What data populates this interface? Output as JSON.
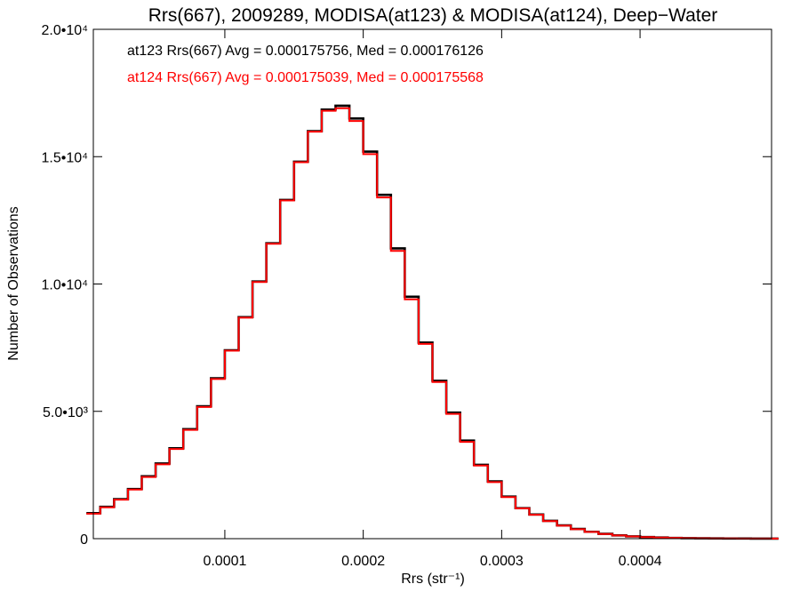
{
  "chart_data": {
    "type": "area",
    "title": "Rrs(667), 2009289, MODISA(at123) & MODISA(at124), Deep−Water",
    "xlabel": "Rrs (str⁻¹)",
    "ylabel": "Number of Observations",
    "xlim": [
      5e-06,
      0.000495
    ],
    "ylim": [
      0,
      20000
    ],
    "x_ticks": [
      {
        "value": 0.0001,
        "label": "0.0001"
      },
      {
        "value": 0.0002,
        "label": "0.0002"
      },
      {
        "value": 0.0003,
        "label": "0.0003"
      },
      {
        "value": 0.0004,
        "label": "0.0004"
      }
    ],
    "y_ticks": [
      {
        "value": 0,
        "label": "0"
      },
      {
        "value": 5000,
        "label": "5.0•10³"
      },
      {
        "value": 10000,
        "label": "1.0•10⁴"
      },
      {
        "value": 15000,
        "label": "1.5•10⁴"
      },
      {
        "value": 20000,
        "label": "2.0•10⁴"
      }
    ],
    "grid": false,
    "x": [
      5e-06,
      1.5e-05,
      2.5e-05,
      3.5e-05,
      4.5e-05,
      5.5e-05,
      6.5e-05,
      7.5e-05,
      8.5e-05,
      9.5e-05,
      0.000105,
      0.000115,
      0.000125,
      0.000135,
      0.000145,
      0.000155,
      0.000165,
      0.000175,
      0.000185,
      0.000195,
      0.000205,
      0.000215,
      0.000225,
      0.000235,
      0.000245,
      0.000255,
      0.000265,
      0.000275,
      0.000285,
      0.000295,
      0.000305,
      0.000315,
      0.000325,
      0.000335,
      0.000345,
      0.000355,
      0.000365,
      0.000375,
      0.000385,
      0.000395,
      0.000405,
      0.000415,
      0.000425,
      0.000435,
      0.000445,
      0.000455,
      0.000465,
      0.000475,
      0.000485,
      0.000495
    ],
    "series": [
      {
        "name": "at123",
        "color": "#000000",
        "legend": "at123 Rrs(667) Avg = 0.000175756, Med = 0.000176126",
        "values": [
          1000,
          1250,
          1550,
          1950,
          2450,
          2950,
          3550,
          4300,
          5200,
          6300,
          7400,
          8700,
          10100,
          11600,
          13300,
          14800,
          16000,
          16850,
          17000,
          16500,
          15200,
          13500,
          11400,
          9500,
          7700,
          6200,
          4950,
          3850,
          2900,
          2250,
          1650,
          1200,
          950,
          700,
          520,
          380,
          270,
          190,
          130,
          90,
          65,
          45,
          30,
          20,
          15,
          10,
          8,
          5,
          4,
          3
        ]
      },
      {
        "name": "at124",
        "color": "#ff0000",
        "legend": "at124 Rrs(667) Avg = 0.000175039, Med = 0.000175568",
        "values": [
          980,
          1230,
          1530,
          1930,
          2420,
          2920,
          3520,
          4270,
          5170,
          6270,
          7380,
          8680,
          10080,
          11580,
          13280,
          14780,
          15980,
          16800,
          16900,
          16400,
          15100,
          13400,
          11300,
          9400,
          7650,
          6150,
          4900,
          3800,
          2870,
          2220,
          1630,
          1190,
          940,
          690,
          510,
          370,
          265,
          185,
          125,
          88,
          62,
          43,
          29,
          19,
          14,
          10,
          7,
          5,
          4,
          3
        ]
      }
    ]
  }
}
